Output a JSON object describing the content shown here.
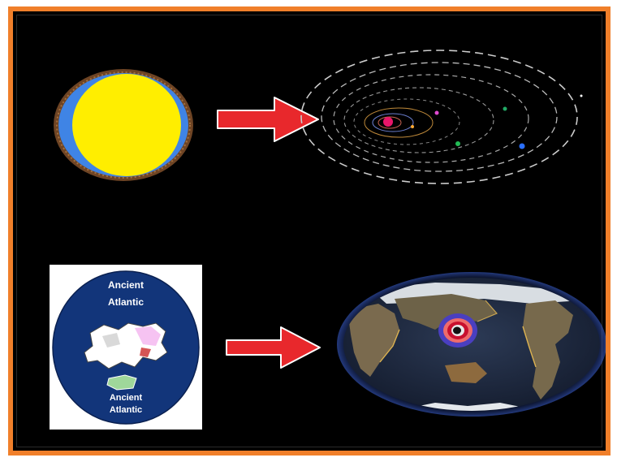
{
  "colors": {
    "frame_border": "#f07f2a",
    "background": "#000000",
    "arrow": "#e8282c",
    "sun_yellow": "#ffee00",
    "sun_ring": "#3f84e5",
    "sun_crust": "#7a4a22",
    "ocean_blue": "#12357a"
  },
  "panels": {
    "sun": {
      "icon": "sun-with-layers-icon"
    },
    "top_arrow": {
      "icon": "right-arrow-icon"
    },
    "solar_system": {
      "icon": "solar-system-orbits-icon"
    },
    "ancient_map": {
      "icon": "ancient-atlantic-map-icon",
      "top_label_line1": "Ancient",
      "top_label_line2": "Atlantic",
      "bottom_label_line1": "Ancient",
      "bottom_label_line2": "Atlantic"
    },
    "bottom_arrow": {
      "icon": "right-arrow-icon"
    },
    "earth_map": {
      "icon": "earth-world-map-icon"
    }
  }
}
